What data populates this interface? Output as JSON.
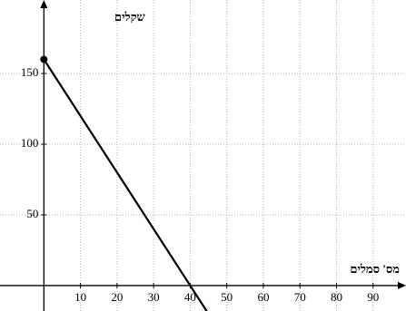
{
  "chart_data": {
    "type": "line",
    "xlabel": "מס' סמלים",
    "ylabel": "שקלים",
    "x": [
      0,
      40,
      45
    ],
    "series": [
      {
        "color": "#000000",
        "values": [
          160,
          0,
          -20
        ]
      }
    ],
    "xlim": [
      -12,
      99
    ],
    "ylim": [
      -18,
      202
    ],
    "xticks": [
      10,
      20,
      30,
      40,
      50,
      60,
      70,
      80,
      90
    ],
    "yticks": [
      50,
      100,
      150
    ],
    "grid": true
  }
}
